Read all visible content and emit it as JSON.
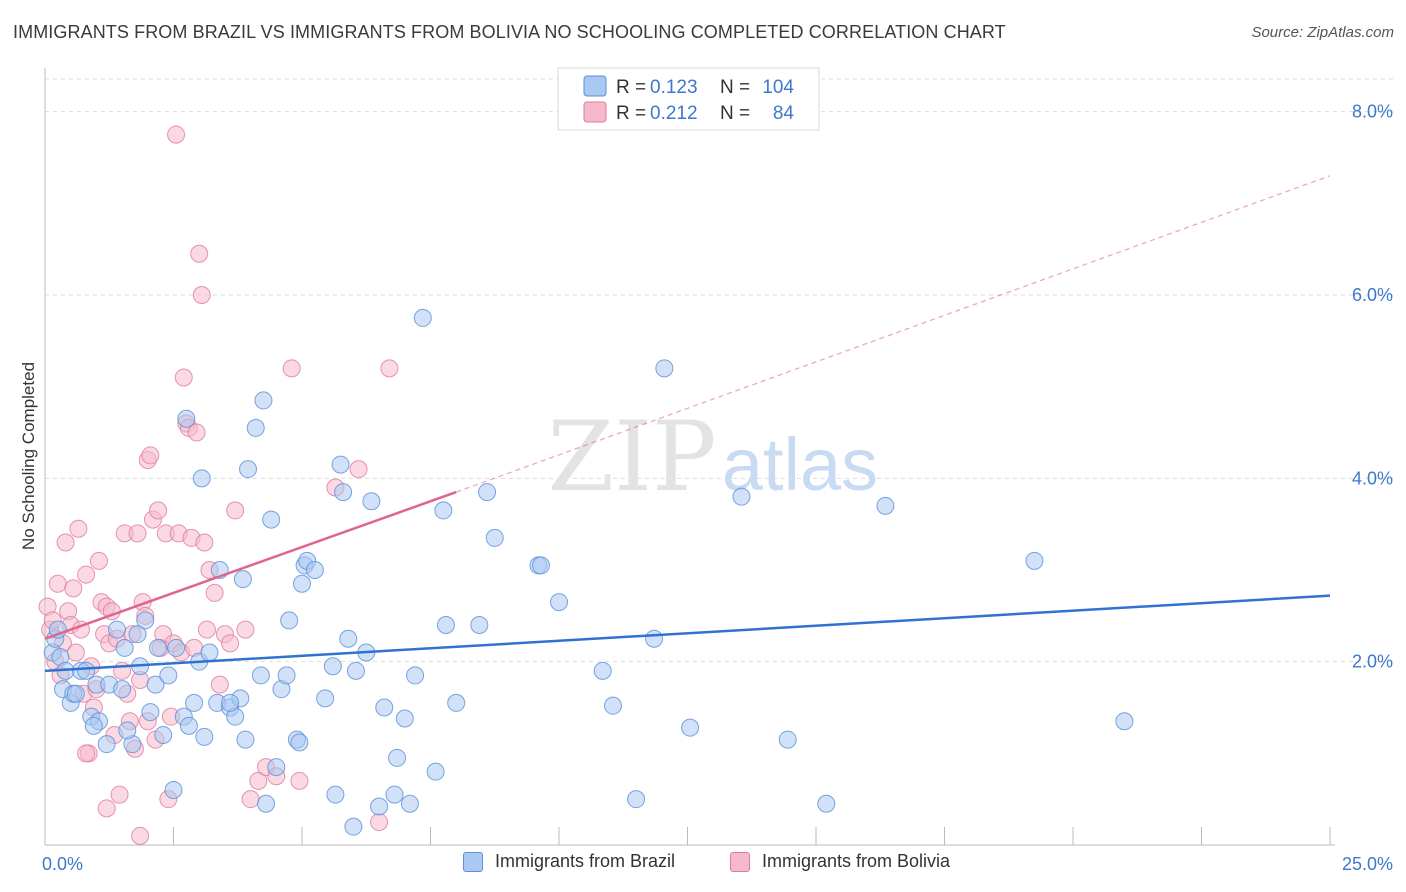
{
  "title": "IMMIGRANTS FROM BRAZIL VS IMMIGRANTS FROM BOLIVIA NO SCHOOLING COMPLETED CORRELATION CHART",
  "source": "Source: ZipAtlas.com",
  "watermark": {
    "zip": "ZIP",
    "atlas": "atlas"
  },
  "colors": {
    "brazil_fill": "#a9c8f2",
    "brazil_stroke": "#5b8fd6",
    "brazil_line": "#2f72d0",
    "bolivia_fill": "#f6b9cc",
    "bolivia_stroke": "#e07a9c",
    "bolivia_line": "#e0648f",
    "tick_label": "#3d78cc",
    "grid": "#dddddd"
  },
  "chart_data": {
    "type": "scatter",
    "title": "IMMIGRANTS FROM BRAZIL VS IMMIGRANTS FROM BOLIVIA NO SCHOOLING COMPLETED CORRELATION CHART",
    "xlabel": "",
    "ylabel": "No Schooling Completed",
    "xlim": [
      0,
      25
    ],
    "ylim": [
      0,
      8.4
    ],
    "x_ticks": [
      0,
      25
    ],
    "x_tick_labels": [
      "0.0%",
      "25.0%"
    ],
    "y_ticks": [
      2,
      4,
      6,
      8
    ],
    "y_tick_labels": [
      "2.0%",
      "4.0%",
      "6.0%",
      "8.0%"
    ],
    "grid": true,
    "legend_top": {
      "position": "top-center",
      "rows": [
        {
          "r_label": "R = ",
          "r_value": "0.123",
          "n_label": "N = ",
          "n_value": "104"
        },
        {
          "r_label": "R = ",
          "r_value": "0.212",
          "n_label": "N = ",
          "n_value": "84"
        }
      ]
    },
    "series": [
      {
        "name": "Immigrants from Brazil",
        "trend": {
          "x": [
            0,
            25
          ],
          "y": [
            1.9,
            2.72
          ],
          "style": "solid"
        },
        "points": [
          [
            0.15,
            2.1
          ],
          [
            0.2,
            2.25
          ],
          [
            0.25,
            2.35
          ],
          [
            0.3,
            2.05
          ],
          [
            0.35,
            1.7
          ],
          [
            0.4,
            1.9
          ],
          [
            0.5,
            1.55
          ],
          [
            0.55,
            1.65
          ],
          [
            0.6,
            1.65
          ],
          [
            0.7,
            1.9
          ],
          [
            0.8,
            1.9
          ],
          [
            0.9,
            1.4
          ],
          [
            1.0,
            1.75
          ],
          [
            1.05,
            1.35
          ],
          [
            1.2,
            1.1
          ],
          [
            1.25,
            1.75
          ],
          [
            1.4,
            2.35
          ],
          [
            1.5,
            1.7
          ],
          [
            1.55,
            2.15
          ],
          [
            1.7,
            1.1
          ],
          [
            1.8,
            2.3
          ],
          [
            1.85,
            1.95
          ],
          [
            1.95,
            2.45
          ],
          [
            2.05,
            1.45
          ],
          [
            2.15,
            1.75
          ],
          [
            2.2,
            2.15
          ],
          [
            2.3,
            1.2
          ],
          [
            2.4,
            1.85
          ],
          [
            2.5,
            0.6
          ],
          [
            2.55,
            2.15
          ],
          [
            2.7,
            1.4
          ],
          [
            2.75,
            4.65
          ],
          [
            2.8,
            1.3
          ],
          [
            2.9,
            1.55
          ],
          [
            3.0,
            2.0
          ],
          [
            3.05,
            4.0
          ],
          [
            3.1,
            1.18
          ],
          [
            3.2,
            2.1
          ],
          [
            3.35,
            1.55
          ],
          [
            3.4,
            3.0
          ],
          [
            3.6,
            1.5
          ],
          [
            3.7,
            1.4
          ],
          [
            3.8,
            1.6
          ],
          [
            3.85,
            2.9
          ],
          [
            3.9,
            1.15
          ],
          [
            3.95,
            4.1
          ],
          [
            4.1,
            4.55
          ],
          [
            4.2,
            1.85
          ],
          [
            4.25,
            4.85
          ],
          [
            4.3,
            0.45
          ],
          [
            4.4,
            3.55
          ],
          [
            4.5,
            0.85
          ],
          [
            4.6,
            1.7
          ],
          [
            4.7,
            1.85
          ],
          [
            4.75,
            2.45
          ],
          [
            4.9,
            1.15
          ],
          [
            4.95,
            1.12
          ],
          [
            5.05,
            3.05
          ],
          [
            5.1,
            3.1
          ],
          [
            5.25,
            3.0
          ],
          [
            5.45,
            1.6
          ],
          [
            5.6,
            1.95
          ],
          [
            5.65,
            0.55
          ],
          [
            5.75,
            4.15
          ],
          [
            5.8,
            3.85
          ],
          [
            5.9,
            2.25
          ],
          [
            6.0,
            0.2
          ],
          [
            6.05,
            1.9
          ],
          [
            6.25,
            2.1
          ],
          [
            6.35,
            3.75
          ],
          [
            6.5,
            0.42
          ],
          [
            6.6,
            1.5
          ],
          [
            6.8,
            0.55
          ],
          [
            6.85,
            0.95
          ],
          [
            7.0,
            1.38
          ],
          [
            7.1,
            0.45
          ],
          [
            7.2,
            1.85
          ],
          [
            7.35,
            5.75
          ],
          [
            7.6,
            0.8
          ],
          [
            7.75,
            3.65
          ],
          [
            7.8,
            2.4
          ],
          [
            8.0,
            1.55
          ],
          [
            8.45,
            2.4
          ],
          [
            8.6,
            3.85
          ],
          [
            8.75,
            3.35
          ],
          [
            9.6,
            3.05
          ],
          [
            9.65,
            3.05
          ],
          [
            10.0,
            2.65
          ],
          [
            10.85,
            1.9
          ],
          [
            11.05,
            1.52
          ],
          [
            11.5,
            0.5
          ],
          [
            11.85,
            2.25
          ],
          [
            12.05,
            5.2
          ],
          [
            12.55,
            1.28
          ],
          [
            13.55,
            3.8
          ],
          [
            14.45,
            1.15
          ],
          [
            15.2,
            0.45
          ],
          [
            16.35,
            3.7
          ],
          [
            19.25,
            3.1
          ],
          [
            21.0,
            1.35
          ],
          [
            1.6,
            1.25
          ],
          [
            3.6,
            1.55
          ],
          [
            5.0,
            2.85
          ],
          [
            0.95,
            1.3
          ]
        ]
      },
      {
        "name": "Immigrants from Bolivia",
        "trend": {
          "x": [
            0,
            8.0
          ],
          "y": [
            2.25,
            3.85
          ],
          "style": "solid"
        },
        "trend_extension": {
          "x": [
            8.0,
            25
          ],
          "y": [
            3.85,
            7.3
          ],
          "style": "dashed"
        },
        "points": [
          [
            0.05,
            2.6
          ],
          [
            0.1,
            2.35
          ],
          [
            0.15,
            2.45
          ],
          [
            0.2,
            2.0
          ],
          [
            0.25,
            2.85
          ],
          [
            0.3,
            1.85
          ],
          [
            0.35,
            2.2
          ],
          [
            0.4,
            3.3
          ],
          [
            0.45,
            2.55
          ],
          [
            0.5,
            2.4
          ],
          [
            0.55,
            2.8
          ],
          [
            0.6,
            2.1
          ],
          [
            0.65,
            3.45
          ],
          [
            0.7,
            2.35
          ],
          [
            0.75,
            1.65
          ],
          [
            0.8,
            2.95
          ],
          [
            0.85,
            1.0
          ],
          [
            0.9,
            1.95
          ],
          [
            0.95,
            1.5
          ],
          [
            1.0,
            1.7
          ],
          [
            1.05,
            3.1
          ],
          [
            1.1,
            2.65
          ],
          [
            1.15,
            2.3
          ],
          [
            1.2,
            2.6
          ],
          [
            1.25,
            2.2
          ],
          [
            1.3,
            2.55
          ],
          [
            1.35,
            1.2
          ],
          [
            1.4,
            2.25
          ],
          [
            1.45,
            0.55
          ],
          [
            1.5,
            1.9
          ],
          [
            1.55,
            3.4
          ],
          [
            1.6,
            1.65
          ],
          [
            1.65,
            1.35
          ],
          [
            1.7,
            2.3
          ],
          [
            1.75,
            1.05
          ],
          [
            1.8,
            3.4
          ],
          [
            1.85,
            1.8
          ],
          [
            1.9,
            2.65
          ],
          [
            1.95,
            2.5
          ],
          [
            2.0,
            4.2
          ],
          [
            2.05,
            4.25
          ],
          [
            2.1,
            3.55
          ],
          [
            2.15,
            1.15
          ],
          [
            2.2,
            3.65
          ],
          [
            2.25,
            2.15
          ],
          [
            2.3,
            2.3
          ],
          [
            2.35,
            3.4
          ],
          [
            2.4,
            0.5
          ],
          [
            2.45,
            1.4
          ],
          [
            2.5,
            2.2
          ],
          [
            2.55,
            7.75
          ],
          [
            2.6,
            3.4
          ],
          [
            2.65,
            2.1
          ],
          [
            2.7,
            5.1
          ],
          [
            2.75,
            4.6
          ],
          [
            2.8,
            4.55
          ],
          [
            2.85,
            3.35
          ],
          [
            2.9,
            2.15
          ],
          [
            2.95,
            4.5
          ],
          [
            3.0,
            6.45
          ],
          [
            3.05,
            6.0
          ],
          [
            3.1,
            3.3
          ],
          [
            3.15,
            2.35
          ],
          [
            3.2,
            3.0
          ],
          [
            3.3,
            2.75
          ],
          [
            3.4,
            1.75
          ],
          [
            3.5,
            2.3
          ],
          [
            3.6,
            2.2
          ],
          [
            3.7,
            3.65
          ],
          [
            3.9,
            2.35
          ],
          [
            4.0,
            0.5
          ],
          [
            4.15,
            0.7
          ],
          [
            4.3,
            0.85
          ],
          [
            4.5,
            0.75
          ],
          [
            4.8,
            5.2
          ],
          [
            4.95,
            0.7
          ],
          [
            5.65,
            3.9
          ],
          [
            6.1,
            4.1
          ],
          [
            6.5,
            0.25
          ],
          [
            6.7,
            5.2
          ],
          [
            1.2,
            0.4
          ],
          [
            1.85,
            0.1
          ],
          [
            2.0,
            1.35
          ],
          [
            0.8,
            1.0
          ]
        ]
      }
    ]
  },
  "legend_bottom": {
    "items": [
      {
        "label": "Immigrants from Brazil"
      },
      {
        "label": "Immigrants from Bolivia"
      }
    ]
  }
}
